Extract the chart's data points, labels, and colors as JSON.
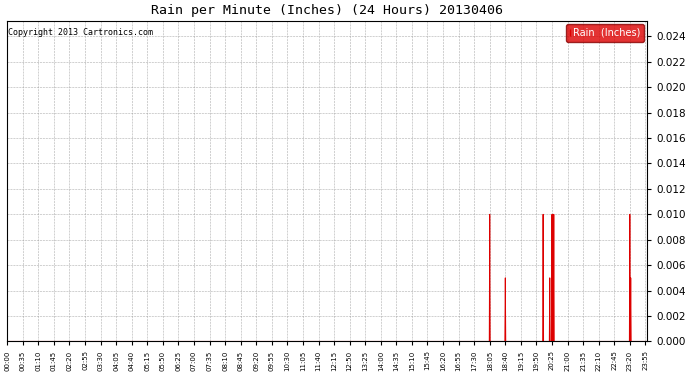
{
  "title": "Rain per Minute (Inches) (24 Hours) 20130406",
  "copyright": "Copyright 2013 Cartronics.com",
  "legend_label": "Rain  (Inches)",
  "legend_bg": "#dd0000",
  "legend_text_color": "#ffffff",
  "line_color": "#dd0000",
  "background_color": "#ffffff",
  "plot_bg": "#ffffff",
  "grid_color": "#999999",
  "border_color": "#000000",
  "ylim": [
    0.0,
    0.0252
  ],
  "yticks": [
    0.0,
    0.002,
    0.004,
    0.006,
    0.008,
    0.01,
    0.012,
    0.014,
    0.016,
    0.018,
    0.02,
    0.022,
    0.024
  ],
  "spike_times_minutes": [
    1085,
    1120,
    1205,
    1220,
    1225,
    1227,
    1229,
    1400,
    1402
  ],
  "spike_values": [
    0.01,
    0.005,
    0.01,
    0.005,
    0.01,
    0.01,
    0.01,
    0.01,
    0.005
  ],
  "total_minutes": 1440,
  "x_tick_interval": 35,
  "figsize": [
    6.9,
    3.75
  ],
  "dpi": 100
}
